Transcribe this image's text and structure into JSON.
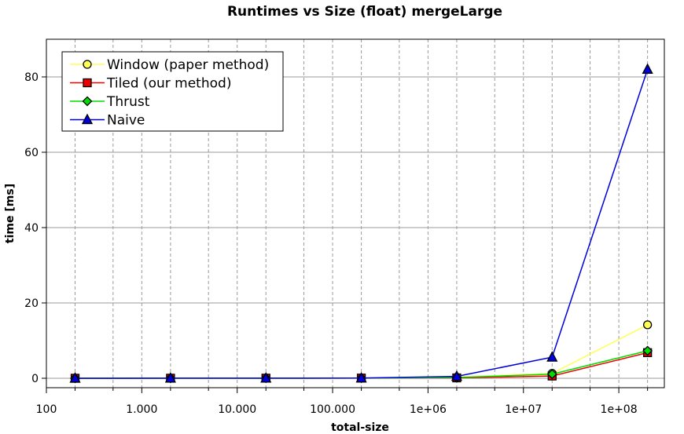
{
  "chart_data": {
    "type": "line",
    "title": "Runtimes vs Size (float) mergeLarge",
    "xlabel": "total-size",
    "ylabel": "time [ms]",
    "x_scale": "log",
    "xlim": [
      100,
      300000000
    ],
    "ylim": [
      -2.5,
      90
    ],
    "x_ticks": [
      {
        "value": 100,
        "label": "100"
      },
      {
        "value": 1000,
        "label": "1.000"
      },
      {
        "value": 10000,
        "label": "10.000"
      },
      {
        "value": 100000,
        "label": "100.000"
      },
      {
        "value": 1000000,
        "label": "1e+06"
      },
      {
        "value": 10000000,
        "label": "1e+07"
      },
      {
        "value": 100000000,
        "label": "1e+08"
      }
    ],
    "y_ticks": [
      {
        "value": 0,
        "label": "0"
      },
      {
        "value": 20,
        "label": "20"
      },
      {
        "value": 40,
        "label": "40"
      },
      {
        "value": 60,
        "label": "60"
      },
      {
        "value": 80,
        "label": "80"
      }
    ],
    "grid": true,
    "legend_position": "top-left",
    "x": [
      200,
      2000,
      20000,
      200000,
      2000000,
      20000000,
      200000000
    ],
    "series": [
      {
        "name": "Window (paper method)",
        "color": "#ffff55",
        "marker": "circle",
        "values": [
          0.01,
          0.02,
          0.03,
          0.05,
          0.25,
          1.3,
          14.2
        ]
      },
      {
        "name": "Tiled (our method)",
        "color": "#ee0000",
        "marker": "square",
        "values": [
          0.01,
          0.02,
          0.03,
          0.05,
          0.1,
          0.6,
          6.8
        ]
      },
      {
        "name": "Thrust",
        "color": "#00dd00",
        "marker": "diamond",
        "values": [
          0.01,
          0.02,
          0.03,
          0.05,
          0.2,
          1.1,
          7.3
        ]
      },
      {
        "name": "Naive",
        "color": "#0000dd",
        "marker": "triangle",
        "values": [
          0.01,
          0.02,
          0.03,
          0.05,
          0.5,
          5.6,
          82
        ]
      }
    ]
  }
}
